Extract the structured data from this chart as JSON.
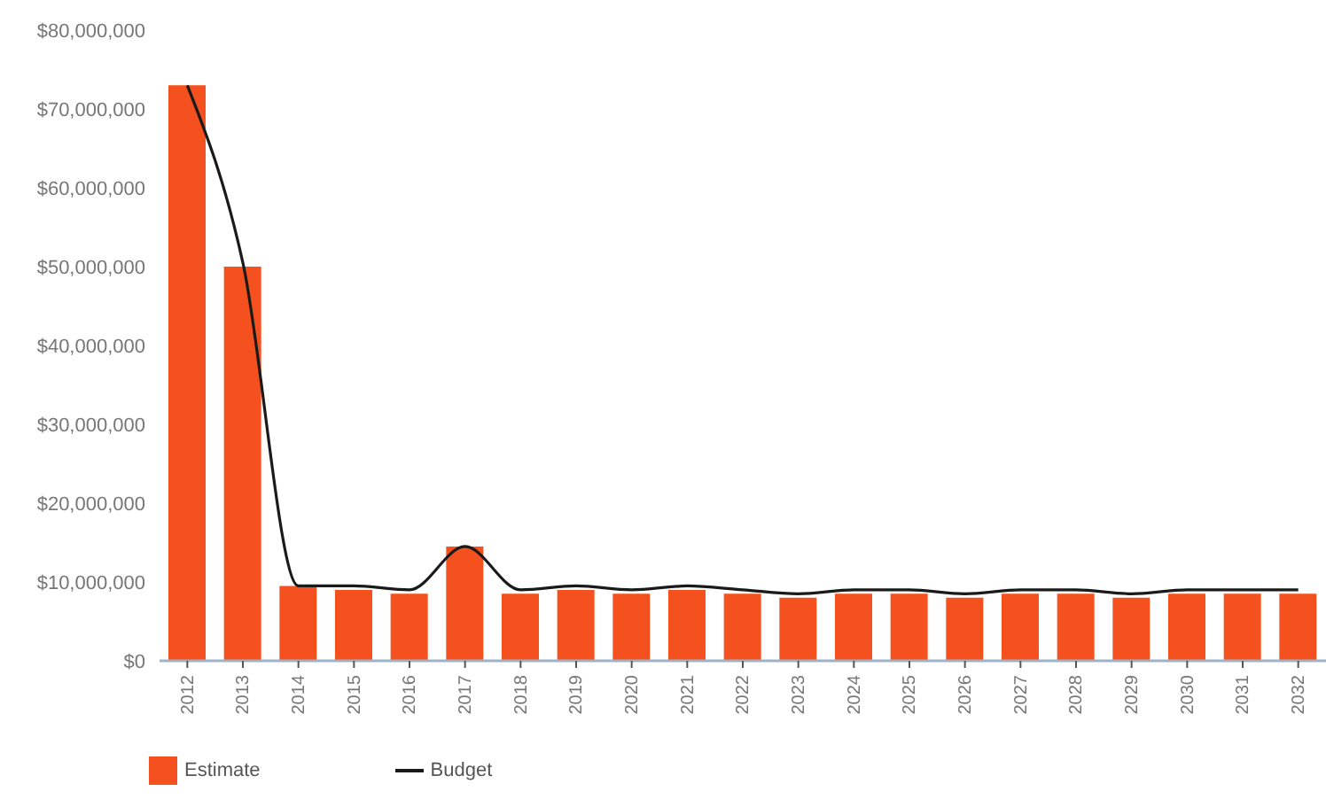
{
  "chart_data": {
    "type": "bar",
    "categories": [
      "2012",
      "2013",
      "2014",
      "2015",
      "2016",
      "2017",
      "2018",
      "2019",
      "2020",
      "2021",
      "2022",
      "2023",
      "2024",
      "2025",
      "2026",
      "2027",
      "2028",
      "2029",
      "2030",
      "2031",
      "2032"
    ],
    "series": [
      {
        "name": "Estimate",
        "color": "#f4511e",
        "values": [
          73000000,
          50000000,
          9500000,
          9000000,
          8500000,
          14500000,
          8500000,
          9000000,
          8500000,
          9000000,
          8500000,
          8000000,
          8500000,
          8500000,
          8000000,
          8500000,
          8500000,
          8000000,
          8500000,
          8500000,
          8500000
        ]
      },
      {
        "name": "Budget",
        "type": "line",
        "color": "#1a1a1a",
        "values": [
          73000000,
          50500000,
          9500000,
          9500000,
          9000000,
          14500000,
          9000000,
          9500000,
          9000000,
          9500000,
          9000000,
          8500000,
          9000000,
          9000000,
          8500000,
          9000000,
          9000000,
          8500000,
          9000000,
          9000000,
          9000000
        ]
      }
    ],
    "ylim": [
      0,
      80000000
    ],
    "yticks": [
      {
        "value": 0,
        "label": "$0"
      },
      {
        "value": 10000000,
        "label": "$10,000,000"
      },
      {
        "value": 20000000,
        "label": "$20,000,000"
      },
      {
        "value": 30000000,
        "label": "$30,000,000"
      },
      {
        "value": 40000000,
        "label": "$40,000,000"
      },
      {
        "value": 50000000,
        "label": "$50,000,000"
      },
      {
        "value": 60000000,
        "label": "$60,000,000"
      },
      {
        "value": 70000000,
        "label": "$70,000,000"
      },
      {
        "value": 80000000,
        "label": "$80,000,000"
      }
    ],
    "legend": "bottom left",
    "marker": "none",
    "line_style": "solid"
  }
}
